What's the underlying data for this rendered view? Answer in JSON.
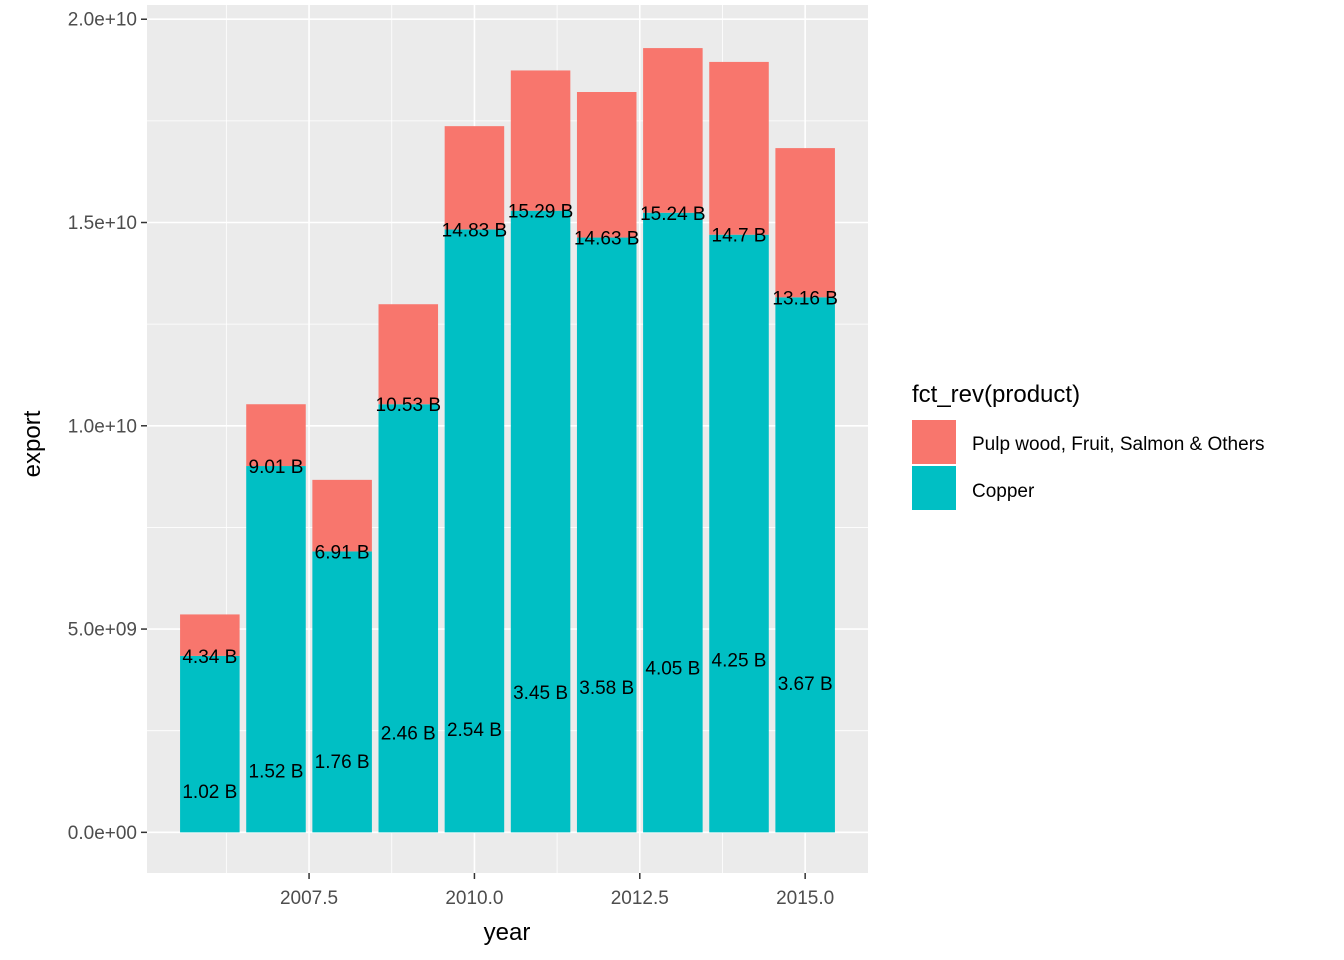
{
  "chart_data": {
    "type": "bar",
    "stacked": true,
    "xlabel": "year",
    "ylabel": "export",
    "x": [
      2006,
      2007,
      2008,
      2009,
      2010,
      2011,
      2012,
      2013,
      2014,
      2015
    ],
    "x_ticks": [
      2007.5,
      2010.0,
      2012.5,
      2015.0
    ],
    "x_tick_labels": [
      "2007.5",
      "2010.0",
      "2012.5",
      "2015.0"
    ],
    "xlim": [
      2005.05,
      2015.95
    ],
    "y_ticks": [
      0,
      5000000000,
      10000000000,
      15000000000,
      20000000000
    ],
    "y_tick_labels": [
      "0.0e+00",
      "5.0e+09",
      "1.0e+10",
      "1.5e+10",
      "2.0e+10"
    ],
    "ylim": [
      -1000000000,
      20350000000
    ],
    "grid": true,
    "legend": {
      "title": "fct_rev(product)",
      "placement": "right",
      "entries": [
        "Pulp wood, Fruit, Salmon & Others",
        "Copper"
      ]
    },
    "series": [
      {
        "name": "Copper",
        "color": "#00BFC4",
        "values": [
          4340000000,
          9010000000,
          6910000000,
          10530000000,
          14830000000,
          15290000000,
          14630000000,
          15240000000,
          14700000000,
          13160000000
        ],
        "labels": [
          "4.34 B",
          "9.01 B",
          "6.91 B",
          "10.53 B",
          "14.83 B",
          "15.29 B",
          "14.63 B",
          "15.24 B",
          "14.7 B",
          "13.16 B"
        ]
      },
      {
        "name": "Pulp wood, Fruit, Salmon & Others",
        "color": "#F8766D",
        "values": [
          1020000000,
          1520000000,
          1760000000,
          2460000000,
          2540000000,
          3450000000,
          3580000000,
          4050000000,
          4250000000,
          3670000000
        ],
        "labels": [
          "1.02 B",
          "1.52 B",
          "1.76 B",
          "2.46 B",
          "2.54 B",
          "3.45 B",
          "3.58 B",
          "4.05 B",
          "4.25 B",
          "3.67 B"
        ]
      }
    ],
    "colors": {
      "panel": "#EBEBEB",
      "grid": "#FFFFFF",
      "tick": "#333333",
      "tick_text": "#4D4D4D"
    }
  }
}
